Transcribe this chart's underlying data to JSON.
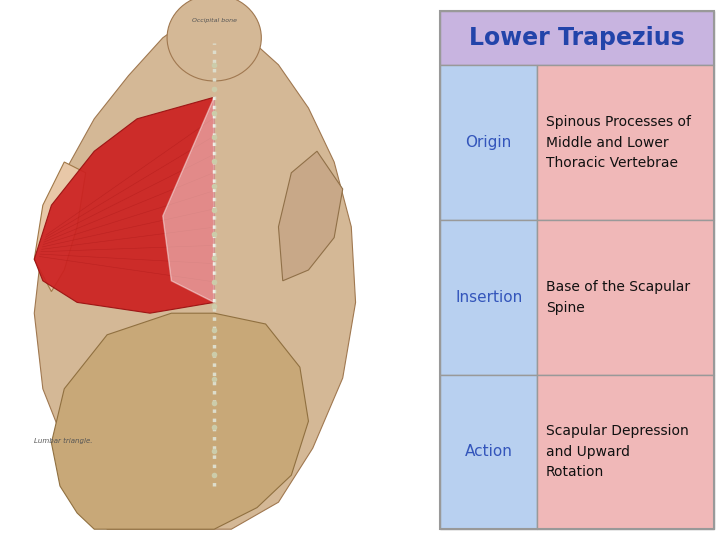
{
  "title": "Lower Trapezius",
  "title_bg": "#c8b4e0",
  "left_col_bg": "#b8d0f0",
  "right_col_bg": "#f0b8b8",
  "border_color": "#999999",
  "rows": [
    {
      "label": "Origin",
      "value": "Spinous Processes of\nMiddle and Lower\nThoracic Vertebrae"
    },
    {
      "label": "Insertion",
      "value": "Base of the Scapular\nSpine"
    },
    {
      "label": "Action",
      "value": "Scapular Depression\nand Upward\nRotation"
    }
  ],
  "label_color": "#3355bb",
  "value_color": "#111111",
  "title_color": "#2244aa",
  "img_bg": "#ffffff",
  "font_size_title": 17,
  "font_size_label": 11,
  "font_size_value": 10
}
